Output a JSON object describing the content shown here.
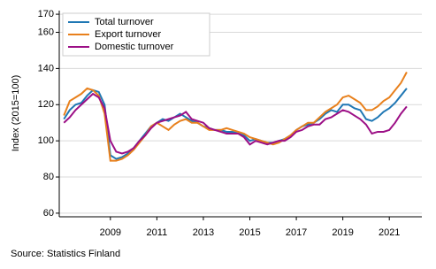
{
  "chart_data": {
    "type": "line",
    "y_label": "Index (2015=100)",
    "source": "Source: Statistics Finland",
    "x": [
      2007.0,
      2007.25,
      2007.5,
      2007.75,
      2008.0,
      2008.25,
      2008.5,
      2008.75,
      2009.0,
      2009.25,
      2009.5,
      2009.75,
      2010.0,
      2010.25,
      2010.5,
      2010.75,
      2011.0,
      2011.25,
      2011.5,
      2011.75,
      2012.0,
      2012.25,
      2012.5,
      2012.75,
      2013.0,
      2013.25,
      2013.5,
      2013.75,
      2014.0,
      2014.25,
      2014.5,
      2014.75,
      2015.0,
      2015.25,
      2015.5,
      2015.75,
      2016.0,
      2016.25,
      2016.5,
      2016.75,
      2017.0,
      2017.25,
      2017.5,
      2017.75,
      2018.0,
      2018.25,
      2018.5,
      2018.75,
      2019.0,
      2019.25,
      2019.5,
      2019.75,
      2020.0,
      2020.25,
      2020.5,
      2020.75,
      2021.0,
      2021.25,
      2021.5,
      2021.75
    ],
    "series": [
      {
        "name": "Total turnover",
        "color": "#1f77b4",
        "values": [
          112,
          117,
          120,
          121,
          125,
          128,
          127,
          120,
          92,
          90,
          91,
          93,
          96,
          100,
          104,
          108,
          110,
          112,
          111,
          113,
          115,
          113,
          111,
          110,
          108,
          107,
          106,
          106,
          105,
          105,
          104,
          103,
          100,
          101,
          100,
          99,
          99,
          100,
          101,
          103,
          106,
          108,
          109,
          110,
          112,
          115,
          117,
          116,
          120,
          120,
          118,
          117,
          112,
          111,
          113,
          116,
          118,
          121,
          125,
          129
        ]
      },
      {
        "name": "Export turnover",
        "color": "#e8801c",
        "values": [
          114,
          122,
          124,
          126,
          129,
          128,
          125,
          115,
          89,
          89,
          90,
          92,
          95,
          99,
          103,
          108,
          110,
          108,
          106,
          109,
          111,
          112,
          110,
          110,
          108,
          106,
          106,
          106,
          107,
          106,
          105,
          104,
          102,
          101,
          100,
          99,
          98,
          99,
          101,
          103,
          106,
          108,
          110,
          110,
          113,
          116,
          118,
          120,
          124,
          125,
          123,
          121,
          117,
          117,
          119,
          122,
          124,
          128,
          132,
          138
        ]
      },
      {
        "name": "Domestic turnover",
        "color": "#9c0f86",
        "values": [
          110,
          113,
          117,
          120,
          123,
          126,
          124,
          118,
          100,
          94,
          93,
          94,
          96,
          100,
          103,
          107,
          110,
          111,
          112,
          113,
          114,
          116,
          112,
          111,
          110,
          107,
          106,
          105,
          104,
          104,
          104,
          102,
          98,
          100,
          99,
          98,
          99,
          100,
          100,
          102,
          105,
          106,
          108,
          109,
          109,
          112,
          113,
          115,
          117,
          116,
          114,
          112,
          109,
          104,
          105,
          105,
          106,
          110,
          115,
          119
        ]
      }
    ],
    "xlim": [
      2006.8,
      2022.4
    ],
    "xticks": [
      2009,
      2011,
      2013,
      2015,
      2017,
      2019,
      2021
    ],
    "ylim": [
      58,
      172
    ],
    "yticks": [
      60,
      80,
      100,
      120,
      140,
      160,
      170
    ],
    "grid": true,
    "legend": "upper-left"
  }
}
